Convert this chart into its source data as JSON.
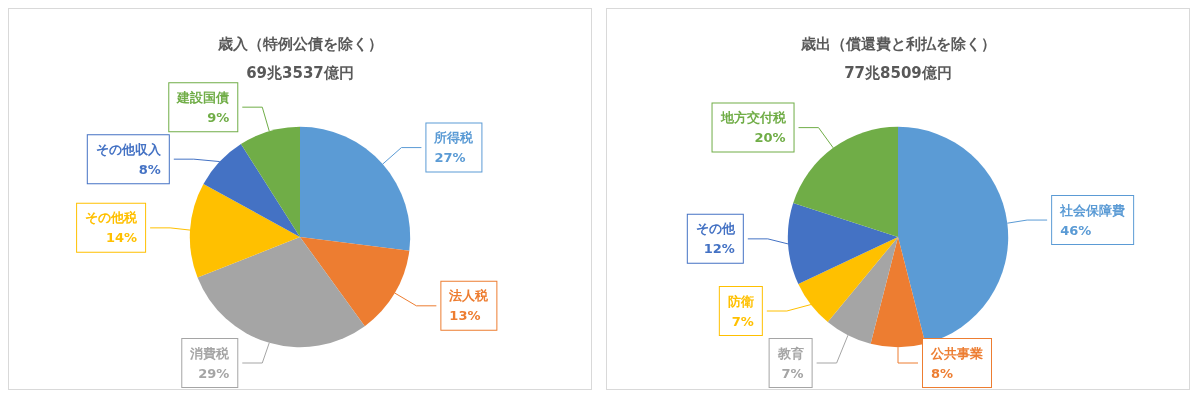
{
  "chart_data": [
    {
      "type": "pie",
      "title": "歳入（特例公債を除く）",
      "subtitle": "69兆3537億円",
      "categories": [
        "所得税",
        "法人税",
        "消費税",
        "その他税",
        "その他収入",
        "建設国債"
      ],
      "values": [
        27,
        13,
        29,
        14,
        8,
        9
      ],
      "colors": [
        "#5b9bd5",
        "#ed7d31",
        "#a5a5a5",
        "#ffc000",
        "#4472c4",
        "#70ad47"
      ],
      "value_labels": [
        "27%",
        "13%",
        "29%",
        "14%",
        "8%",
        "9%"
      ],
      "legend": false
    },
    {
      "type": "pie",
      "title": "歳出（償還費と利払を除く）",
      "subtitle": "77兆8509億円",
      "categories": [
        "社会保障費",
        "公共事業",
        "教育",
        "防衛",
        "その他",
        "地方交付税"
      ],
      "values": [
        46,
        8,
        7,
        7,
        12,
        20
      ],
      "colors": [
        "#5b9bd5",
        "#ed7d31",
        "#a5a5a5",
        "#ffc000",
        "#4472c4",
        "#70ad47"
      ],
      "value_labels": [
        "46%",
        "8%",
        "7%",
        "7%",
        "12%",
        "20%"
      ],
      "legend": false
    }
  ]
}
